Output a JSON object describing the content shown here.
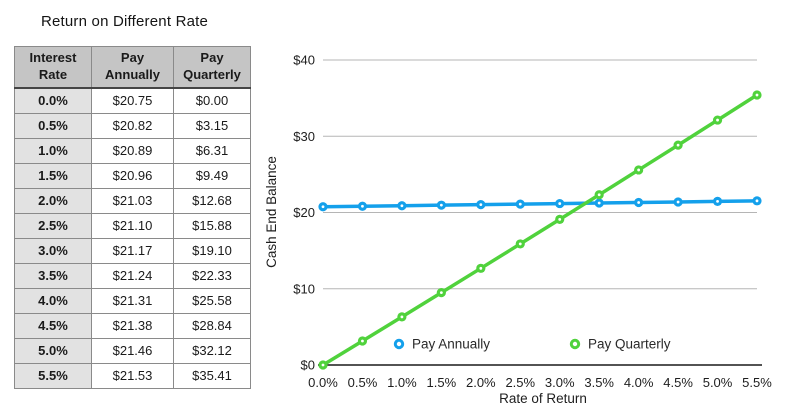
{
  "table_section": {
    "title": "Return on Different Rate",
    "columns": [
      "Interest Rate",
      "Pay Annually",
      "Pay Quarterly"
    ],
    "rows": [
      [
        "0.0%",
        "$20.75",
        "$0.00"
      ],
      [
        "0.5%",
        "$20.82",
        "$3.15"
      ],
      [
        "1.0%",
        "$20.89",
        "$6.31"
      ],
      [
        "1.5%",
        "$20.96",
        "$9.49"
      ],
      [
        "2.0%",
        "$21.03",
        "$12.68"
      ],
      [
        "2.5%",
        "$21.10",
        "$15.88"
      ],
      [
        "3.0%",
        "$21.17",
        "$19.10"
      ],
      [
        "3.5%",
        "$21.24",
        "$22.33"
      ],
      [
        "4.0%",
        "$21.31",
        "$25.58"
      ],
      [
        "4.5%",
        "$21.38",
        "$28.84"
      ],
      [
        "5.0%",
        "$21.46",
        "$32.12"
      ],
      [
        "5.5%",
        "$21.53",
        "$35.41"
      ]
    ]
  },
  "chart_data": {
    "type": "line",
    "xlabel": "Rate of Return",
    "ylabel": "Cash End Balance",
    "categories": [
      "0.0%",
      "0.5%",
      "1.0%",
      "1.5%",
      "2.0%",
      "2.5%",
      "3.0%",
      "3.5%",
      "4.0%",
      "4.5%",
      "5.0%",
      "5.5%"
    ],
    "series": [
      {
        "name": "Pay Annually",
        "color": "#14A0EB",
        "values": [
          20.75,
          20.82,
          20.89,
          20.96,
          21.03,
          21.1,
          21.17,
          21.24,
          21.31,
          21.38,
          21.46,
          21.53
        ]
      },
      {
        "name": "Pay Quarterly",
        "color": "#50D23C",
        "values": [
          0.0,
          3.15,
          6.31,
          9.49,
          12.68,
          15.88,
          19.1,
          22.33,
          25.58,
          28.84,
          32.12,
          35.41
        ]
      }
    ],
    "ylim": [
      0,
      40
    ],
    "yticks": [
      0,
      10,
      20,
      30,
      40
    ],
    "ytick_labels": [
      "$0",
      "$10",
      "$20",
      "$30",
      "$40"
    ],
    "grid": true,
    "legend_position": "bottom-inside",
    "colors": {
      "gridline": "#b5b5b5",
      "axis": "#1a1a1a",
      "text": "#1e1e1e"
    }
  }
}
